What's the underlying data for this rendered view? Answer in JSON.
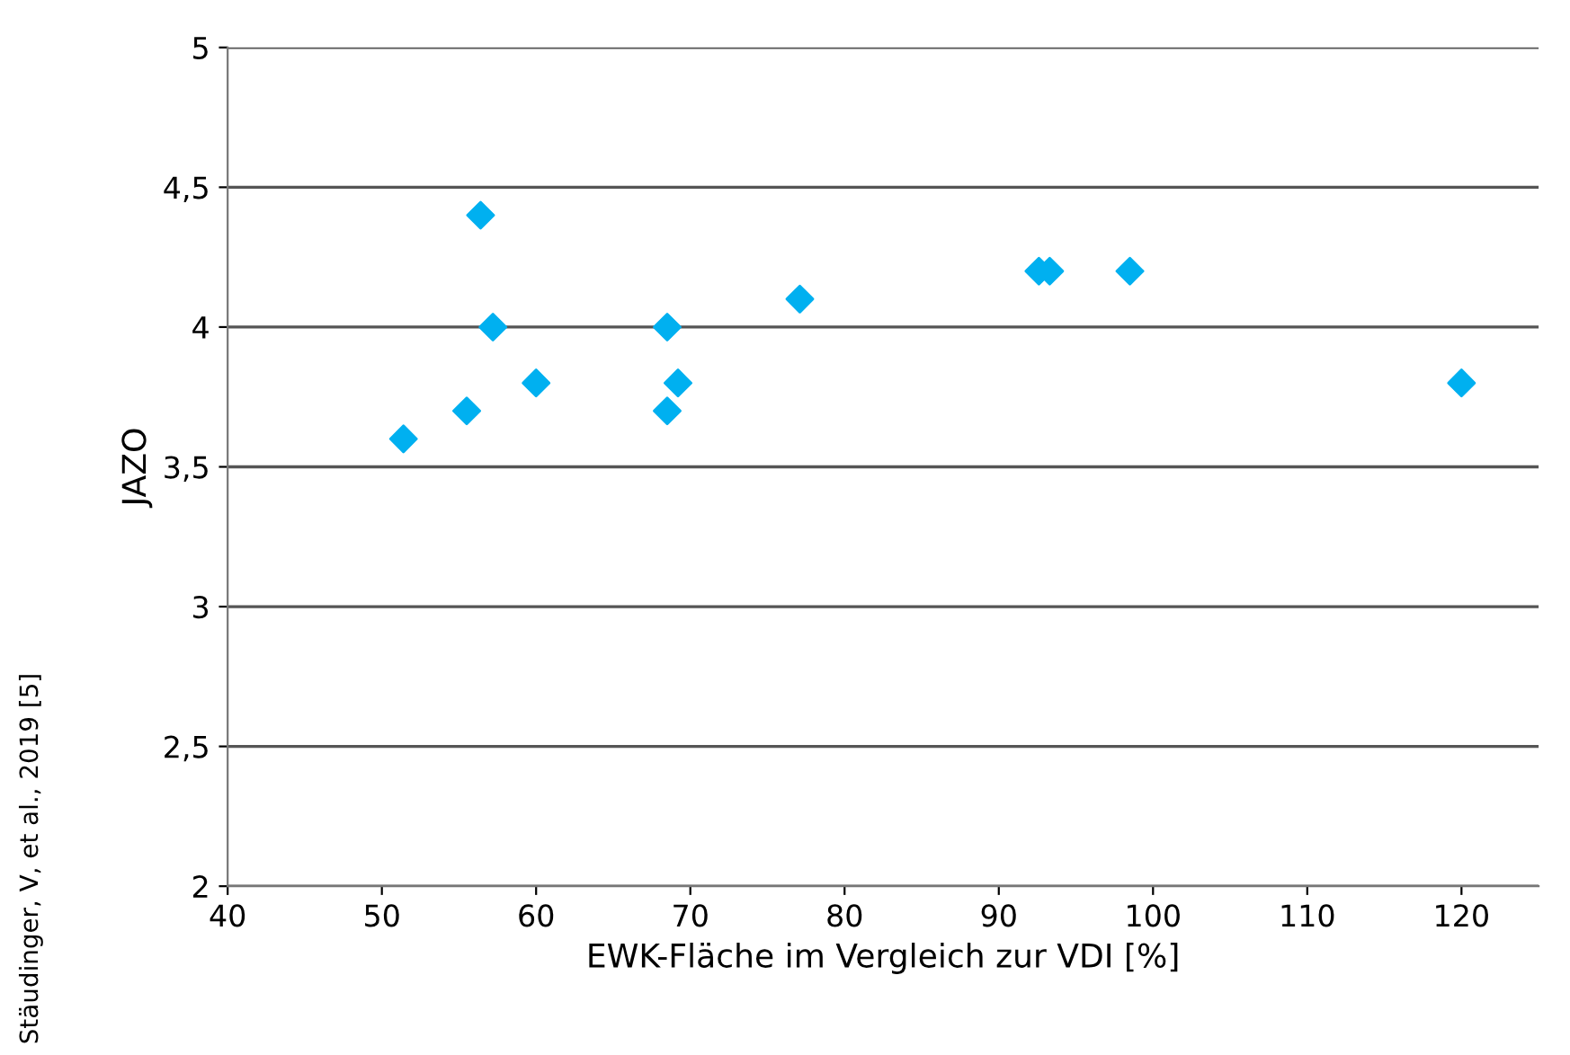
{
  "chart_data": {
    "type": "scatter",
    "xlabel": "EWK-Fläche im Vergleich zur VDI [%]",
    "ylabel": "JAZO",
    "annotations": [
      "Stäudinger, V, et al., 2019 [5]"
    ],
    "x": [
      51.4,
      55.5,
      56.4,
      57.2,
      60.0,
      68.5,
      68.5,
      69.2,
      77.1,
      92.6,
      93.3,
      98.5,
      120.0
    ],
    "series": [
      {
        "color": "#00b0f0",
        "values": [
          3.6,
          3.7,
          4.4,
          4.0,
          3.8,
          4.0,
          3.7,
          3.8,
          4.1,
          4.2,
          4.2,
          4.2,
          3.8
        ]
      }
    ],
    "marker": "diamond",
    "grid": "y",
    "legend": false,
    "xlim": [
      40,
      125
    ],
    "xticks": [
      40,
      50,
      60,
      70,
      80,
      90,
      100,
      110,
      120
    ],
    "ylim": [
      2,
      5
    ],
    "yticks": [
      2,
      {
        "value": 2.5,
        "label": "2,5"
      },
      3,
      {
        "value": 3.5,
        "label": "3,5"
      },
      4,
      {
        "value": 4.5,
        "label": "4,5"
      },
      5
    ]
  }
}
